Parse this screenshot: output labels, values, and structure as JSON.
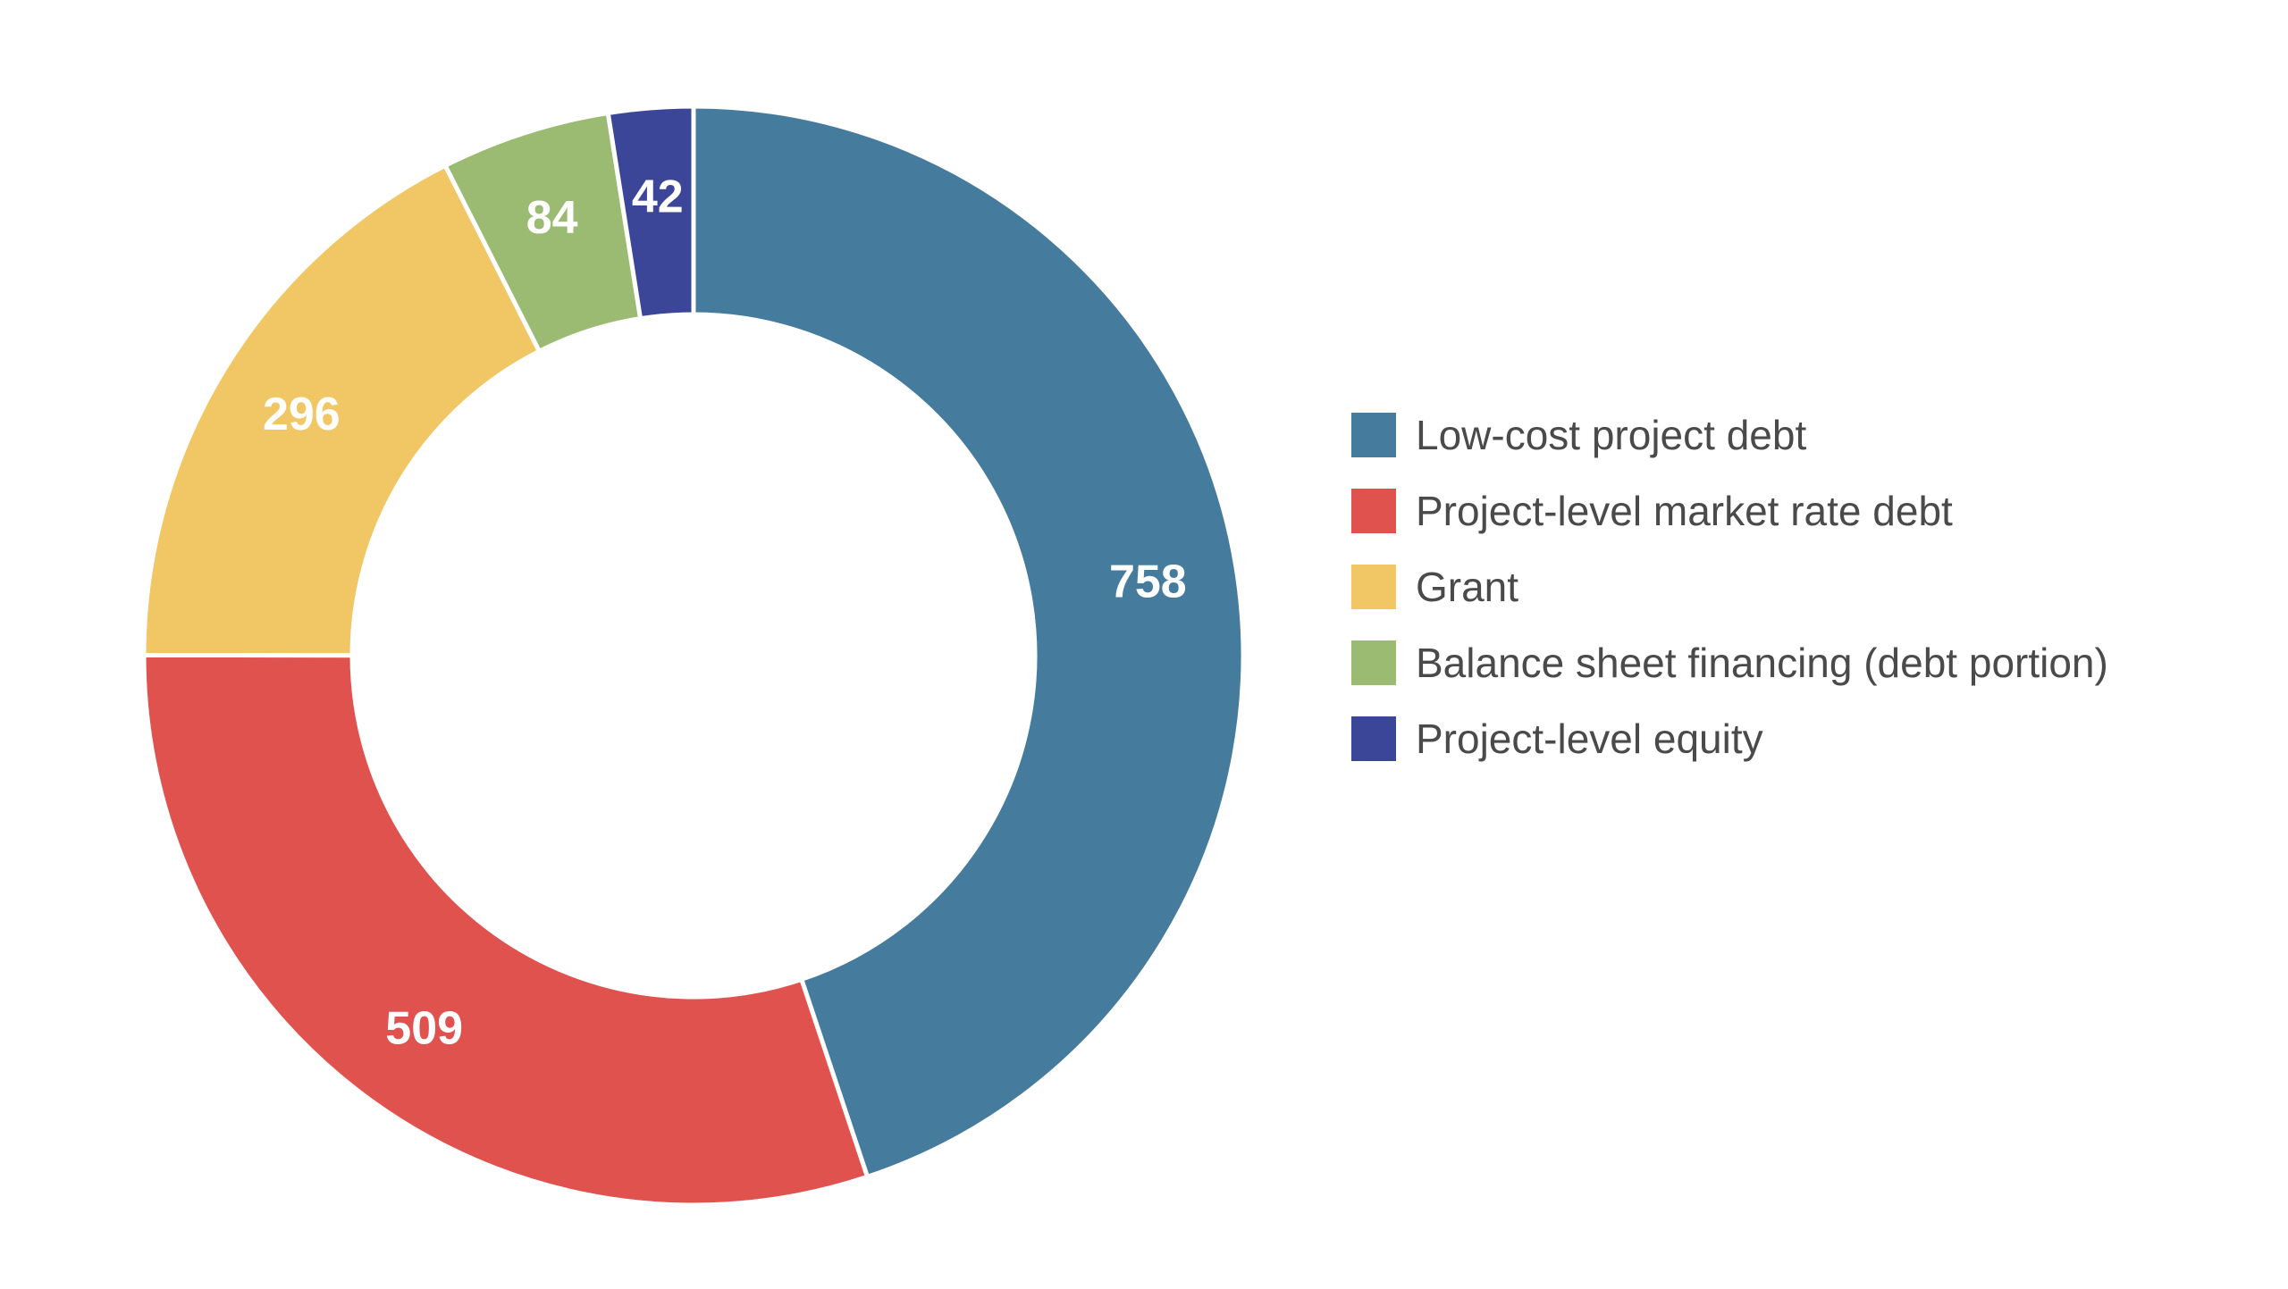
{
  "chart_data": {
    "type": "pie",
    "variant": "donut",
    "start": "top",
    "direction": "clockwise",
    "legend_position": "right",
    "slices": [
      {
        "label": "Low-cost project debt",
        "value": 758,
        "color": "#457b9d"
      },
      {
        "label": "Project-level market rate debt",
        "value": 509,
        "color": "#e0524d"
      },
      {
        "label": "Grant",
        "value": 296,
        "color": "#f1c766"
      },
      {
        "label": "Balance sheet financing (debt portion)",
        "value": 84,
        "color": "#9bbb73"
      },
      {
        "label": "Project-level equity",
        "value": 42,
        "color": "#3b4699"
      }
    ]
  }
}
